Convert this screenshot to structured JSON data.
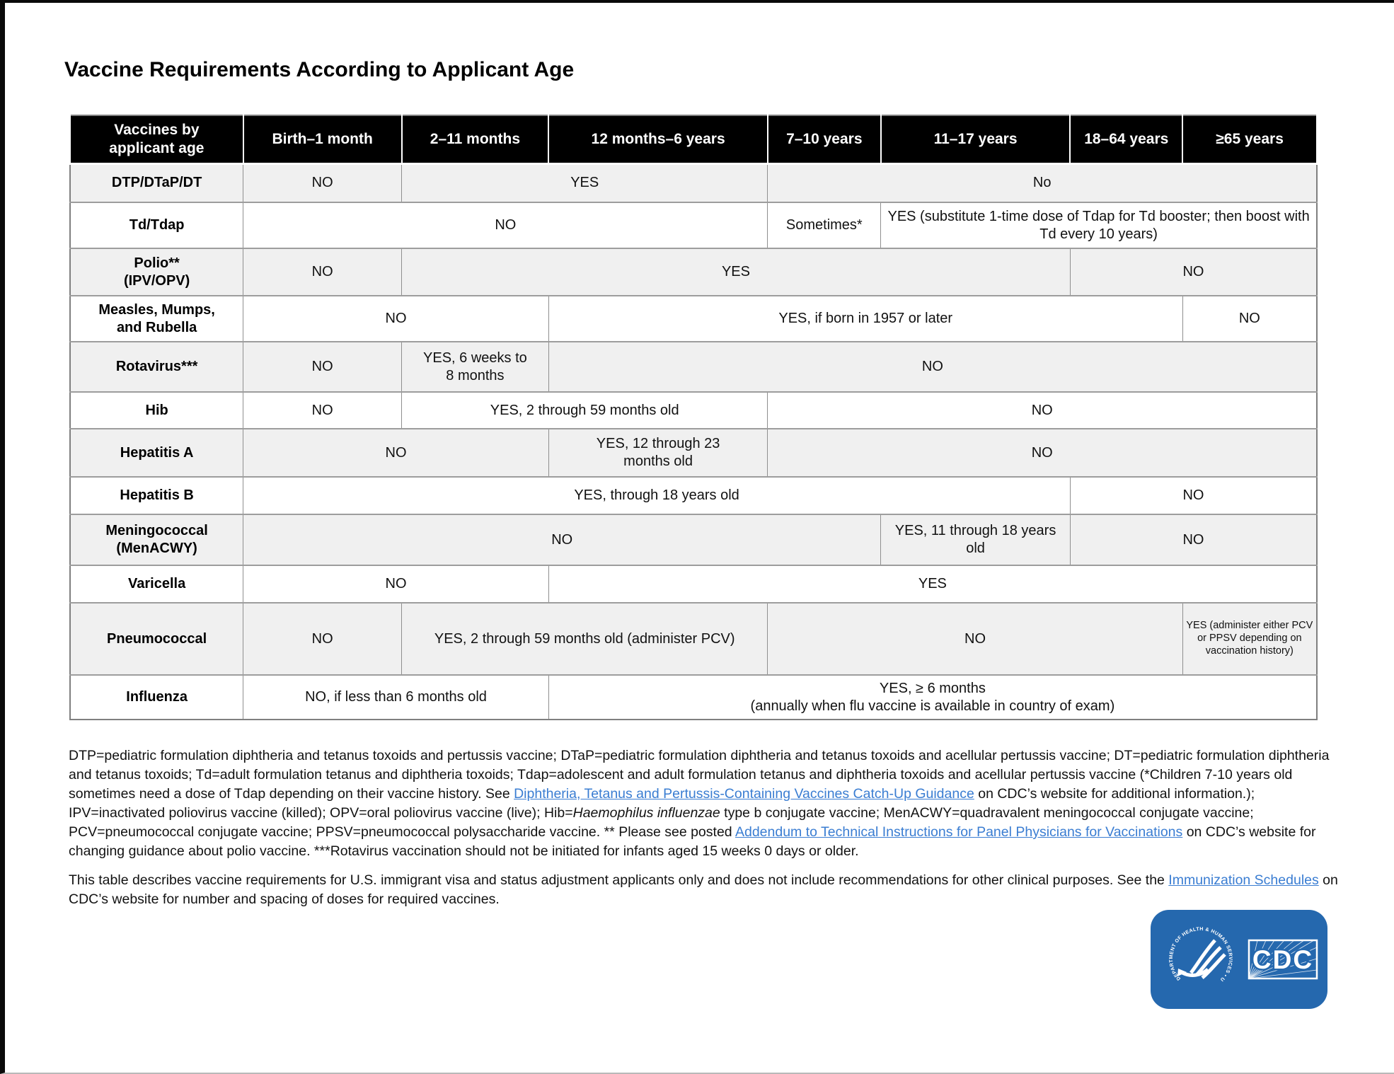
{
  "page": {
    "title": "Vaccine Requirements According to Applicant Age"
  },
  "table": {
    "header": [
      "Vaccines by\napplicant age",
      "Birth–1 month",
      "2–11 months",
      "12 months–6 years",
      "7–10 years",
      "11–17 years",
      "18–64 years",
      "≥65 years"
    ],
    "rows": [
      {
        "vaccine": "DTP/DTaP/DT",
        "cells": [
          {
            "text": "NO",
            "span": 1
          },
          {
            "text": "YES",
            "span": 2
          },
          {
            "text": "No",
            "span": 4
          }
        ]
      },
      {
        "vaccine": "Td/Tdap",
        "cells": [
          {
            "text": "NO",
            "span": 3
          },
          {
            "text": "Sometimes*",
            "span": 1
          },
          {
            "text": "YES (substitute 1-time dose of Tdap for Td booster; then boost with Td every 10 years)",
            "span": 3
          }
        ]
      },
      {
        "vaccine": "Polio**\n(IPV/OPV)",
        "cells": [
          {
            "text": "NO",
            "span": 1
          },
          {
            "text": "YES",
            "span": 4
          },
          {
            "text": "NO",
            "span": 2
          }
        ]
      },
      {
        "vaccine": "Measles, Mumps,\nand Rubella",
        "cells": [
          {
            "text": "NO",
            "span": 2
          },
          {
            "text": "YES, if born in 1957 or later",
            "span": 4
          },
          {
            "text": "NO",
            "span": 1
          }
        ]
      },
      {
        "vaccine": "Rotavirus***",
        "cells": [
          {
            "text": "NO",
            "span": 1
          },
          {
            "text": "YES, 6 weeks to\n8 months",
            "span": 1
          },
          {
            "text": "NO",
            "span": 5
          }
        ]
      },
      {
        "vaccine": "Hib",
        "cells": [
          {
            "text": "NO",
            "span": 1
          },
          {
            "text": "YES, 2 through 59 months old",
            "span": 2
          },
          {
            "text": "NO",
            "span": 4
          }
        ]
      },
      {
        "vaccine": "Hepatitis A",
        "cells": [
          {
            "text": "NO",
            "span": 2
          },
          {
            "text": "YES, 12 through 23\nmonths old",
            "span": 1
          },
          {
            "text": "NO",
            "span": 4
          }
        ]
      },
      {
        "vaccine": "Hepatitis B",
        "cells": [
          {
            "text": "YES,  through 18 years old",
            "span": 5
          },
          {
            "text": "NO",
            "span": 2
          }
        ]
      },
      {
        "vaccine": "Meningococcal\n(MenACWY)",
        "cells": [
          {
            "text": "NO",
            "span": 4
          },
          {
            "text": "YES, 11 through 18 years old",
            "span": 1
          },
          {
            "text": "NO",
            "span": 2
          }
        ]
      },
      {
        "vaccine": "Varicella",
        "cells": [
          {
            "text": "NO",
            "span": 2
          },
          {
            "text": "YES",
            "span": 5
          }
        ]
      },
      {
        "vaccine": "Pneumococcal",
        "cells": [
          {
            "text": "NO",
            "span": 1
          },
          {
            "text": "YES, 2 through 59 months old (administer PCV)",
            "span": 2
          },
          {
            "text": "NO",
            "span": 3
          },
          {
            "text": "YES (administer either PCV or PPSV depending on vaccination history)",
            "span": 1,
            "small": true
          }
        ]
      },
      {
        "vaccine": "Influenza",
        "cells": [
          {
            "text": "NO, if less than 6 months old",
            "span": 2
          },
          {
            "text": "YES, ≥ 6 months\n(annually when flu vaccine is available in country of exam)",
            "span": 5
          }
        ]
      }
    ]
  },
  "footnotes": {
    "paragraph1": [
      {
        "type": "plain",
        "text": "DTP=pediatric formulation diphtheria and tetanus toxoids and pertussis vaccine; DTaP=pediatric formulation diphtheria and tetanus toxoids and acellular pertussis vaccine; DT=pediatric formulation diphtheria and tetanus toxoids; Td=adult formulation tetanus and diphtheria toxoids; Tdap=adolescent and adult formulation tetanus and diphtheria toxoids and acellular pertussis vaccine (*Children 7-10 years old sometimes need a dose of Tdap depending on their vaccine history.  See "
      },
      {
        "type": "link",
        "text": "Diphtheria, Tetanus and Pertussis-Containing Vaccines Catch-Up Guidance"
      },
      {
        "type": "plain",
        "text": " on CDC’s website for additional information.); IPV=inactivated poliovirus vaccine (killed); OPV=oral poliovirus vaccine (live); Hib="
      },
      {
        "type": "italic",
        "text": "Haemophilus influenzae"
      },
      {
        "type": "plain",
        "text": " type b conjugate vaccine; MenACWY=quadravalent meningococcal conjugate vaccine; PCV=pneumococcal conjugate vaccine; PPSV=pneumococcal polysaccharide vaccine. ** Please see posted "
      },
      {
        "type": "link",
        "text": "Addendum to Technical Instructions for Panel Physicians for Vaccinations"
      },
      {
        "type": "plain",
        "text": " on CDC’s website for changing guidance about polio vaccine. ***Rotavirus vaccination should not be initiated for infants aged 15 weeks 0 days or older."
      }
    ],
    "paragraph2": [
      {
        "type": "plain",
        "text": "This table describes vaccine requirements for U.S. immigrant visa and status adjustment applicants only and does not include recommendations for other clinical purposes.  See the "
      },
      {
        "type": "link",
        "text": "Immunization Schedules"
      },
      {
        "type": "plain",
        "text": " on CDC’s website for number and spacing of doses for required vaccines."
      }
    ]
  },
  "logo": {
    "cdc_label": "CDC",
    "seal_caption": "DEPARTMENT OF HEALTH & HUMAN SERVICES • USA",
    "brand_blue": "#2568ae"
  },
  "colors": {
    "header_bg": "#000000",
    "shaded_row_bg": "#f0f0f0",
    "link_blue": "#3a7dd2"
  }
}
